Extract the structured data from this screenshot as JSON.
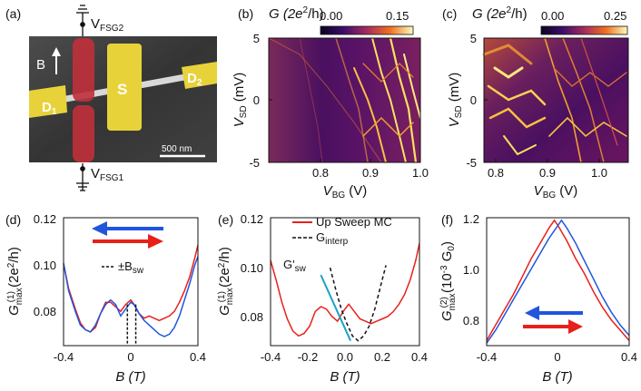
{
  "panels": {
    "a": {
      "label": "(a)",
      "gate_top": "V",
      "gate_top_sub": "FSG2",
      "gate_bottom": "V",
      "gate_bottom_sub": "FSG1",
      "b_label": "B",
      "d1_label": "D",
      "d1_sub": "1",
      "s_label": "S",
      "d2_label": "D",
      "d2_sub": "2",
      "scale_label": "500 nm"
    },
    "b": {
      "label": "(b)",
      "cbar_label_main": "G (2e",
      "cbar_label_sup": "2",
      "cbar_label_end": "/h)",
      "cbar_ticks": [
        "0.00",
        "0.15"
      ],
      "yticks": [
        "5",
        "0",
        "-5"
      ],
      "xticks": [
        "0.8",
        "0.9",
        "1.0"
      ],
      "ylabel_main": "V",
      "ylabel_sub": "SD",
      "ylabel_unit": " (mV)",
      "xlabel_main": "V",
      "xlabel_sub": "BG",
      "xlabel_unit": " (V)"
    },
    "c": {
      "label": "(c)",
      "cbar_label_main": "G (2e",
      "cbar_label_sup": "2",
      "cbar_label_end": "/h)",
      "cbar_ticks": [
        "0.00",
        "0.25"
      ],
      "yticks": [
        "5",
        "0",
        "-5"
      ],
      "xticks": [
        "0.8",
        "0.9",
        "1.0"
      ],
      "ylabel_main": "V",
      "ylabel_sub": "SD",
      "ylabel_unit": " (mV)",
      "xlabel_main": "V",
      "xlabel_sub": "BG",
      "xlabel_unit": " (V)"
    },
    "d": {
      "label": "(d)",
      "legend_dashed": "±B",
      "legend_dashed_sub": "sw",
      "yticks": [
        "0.12",
        "0.10",
        "0.08"
      ],
      "xticks": [
        "-0.4",
        "0",
        "0.4"
      ],
      "ylabel": "G",
      "ylabel_sub": "max",
      "ylabel_sup": "(1)",
      "ylabel_unit": " (2e",
      "ylabel_unit_sup": "2",
      "ylabel_unit_end": "/h)",
      "xlabel": "B (T)"
    },
    "e": {
      "label": "(e)",
      "legend_red": "Up Sweep MC",
      "legend_dashed": "G",
      "legend_dashed_sub": "interp",
      "annot": "G'",
      "annot_sub": "sw",
      "yticks": [
        "0.12",
        "0.10",
        "0.08"
      ],
      "xticks": [
        "-0.4",
        "-0.2",
        "0.0",
        "0.2",
        "0.4"
      ],
      "ylabel": "G",
      "ylabel_sub": "max",
      "ylabel_sup": "(1)",
      "ylabel_unit": " (2e",
      "ylabel_unit_sup": "2",
      "ylabel_unit_end": "/h)",
      "xlabel": "B (T)"
    },
    "f": {
      "label": "(f)",
      "yticks": [
        "1.2",
        "1.0",
        "0.8"
      ],
      "xticks": [
        "-0.4",
        "0",
        "0.4"
      ],
      "ylabel": "G",
      "ylabel_sub": "max",
      "ylabel_sup": "(2)",
      "ylabel_unit": " (10",
      "ylabel_unit_sup": "-3",
      "ylabel_unit_end": " G",
      "ylabel_unit_sub": "0",
      "ylabel_close": ")",
      "xlabel": "B (T)"
    }
  },
  "colors": {
    "red": "#e8201a",
    "blue": "#2255dd",
    "cyan": "#18a3c6",
    "dashed": "#111111",
    "yellow_device": "#e8d23a",
    "red_gate": "#c0303a"
  },
  "chart_data": [
    {
      "panel": "b",
      "type": "heatmap",
      "xlabel": "VBG (V)",
      "ylabel": "VSD (mV)",
      "xlim": [
        0.75,
        1.0
      ],
      "ylim": [
        -5,
        5
      ],
      "colorbar_range": [
        0.0,
        0.15
      ],
      "colormap": "inferno"
    },
    {
      "panel": "c",
      "type": "heatmap",
      "xlabel": "VBG (V)",
      "ylabel": "VSD (mV)",
      "xlim": [
        0.77,
        1.05
      ],
      "ylim": [
        -5,
        5
      ],
      "colorbar_range": [
        0.0,
        0.25
      ],
      "colormap": "inferno"
    },
    {
      "panel": "d",
      "type": "line",
      "xlabel": "B (T)",
      "ylabel": "G(1)max (2e2/h)",
      "xlim": [
        -0.4,
        0.4
      ],
      "ylim": [
        0.065,
        0.12
      ],
      "series": [
        {
          "name": "",
          "color": "red",
          "x": [
            -0.4,
            -0.37,
            -0.33,
            -0.3,
            -0.27,
            -0.24,
            -0.21,
            -0.18,
            -0.15,
            -0.12,
            -0.09,
            -0.06,
            -0.03,
            0.0,
            0.02,
            0.05,
            0.08,
            0.11,
            0.14,
            0.17,
            0.2,
            0.23,
            0.26,
            0.29,
            0.32,
            0.35,
            0.38,
            0.4
          ],
          "y": [
            0.101,
            0.09,
            0.081,
            0.075,
            0.072,
            0.071,
            0.073,
            0.079,
            0.084,
            0.084,
            0.082,
            0.08,
            0.083,
            0.085,
            0.083,
            0.079,
            0.077,
            0.078,
            0.077,
            0.076,
            0.077,
            0.078,
            0.08,
            0.084,
            0.089,
            0.095,
            0.103,
            0.109
          ]
        },
        {
          "name": "",
          "color": "blue",
          "x": [
            -0.4,
            -0.37,
            -0.33,
            -0.3,
            -0.27,
            -0.24,
            -0.21,
            -0.18,
            -0.15,
            -0.12,
            -0.09,
            -0.06,
            -0.03,
            0.0,
            0.02,
            0.05,
            0.08,
            0.11,
            0.14,
            0.17,
            0.2,
            0.23,
            0.26,
            0.29,
            0.32,
            0.35,
            0.38,
            0.4
          ],
          "y": [
            0.101,
            0.089,
            0.08,
            0.074,
            0.072,
            0.071,
            0.074,
            0.079,
            0.083,
            0.085,
            0.083,
            0.078,
            0.081,
            0.084,
            0.083,
            0.079,
            0.076,
            0.074,
            0.072,
            0.07,
            0.069,
            0.07,
            0.073,
            0.078,
            0.085,
            0.092,
            0.1,
            0.104
          ]
        }
      ],
      "vlines": [
        -0.02,
        0.03
      ]
    },
    {
      "panel": "e",
      "type": "line",
      "xlabel": "B (T)",
      "ylabel": "G(1)max (2e2/h)",
      "xlim": [
        -0.4,
        0.4
      ],
      "ylim": [
        0.068,
        0.12
      ],
      "series": [
        {
          "name": "Up Sweep MC",
          "color": "red",
          "x": [
            -0.4,
            -0.37,
            -0.34,
            -0.31,
            -0.28,
            -0.25,
            -0.22,
            -0.19,
            -0.16,
            -0.13,
            -0.1,
            -0.07,
            -0.04,
            -0.01,
            0.02,
            0.05,
            0.08,
            0.11,
            0.14,
            0.17,
            0.2,
            0.23,
            0.26,
            0.29,
            0.32,
            0.35,
            0.38,
            0.4
          ],
          "y": [
            0.103,
            0.095,
            0.086,
            0.079,
            0.074,
            0.072,
            0.073,
            0.076,
            0.082,
            0.084,
            0.083,
            0.08,
            0.078,
            0.082,
            0.085,
            0.082,
            0.079,
            0.078,
            0.077,
            0.078,
            0.079,
            0.08,
            0.082,
            0.085,
            0.089,
            0.095,
            0.103,
            0.11
          ]
        },
        {
          "name": "Ginterp",
          "color": "dashed",
          "x": [
            -0.08,
            -0.05,
            -0.02,
            0.01,
            0.04,
            0.07,
            0.1,
            0.13,
            0.16,
            0.19,
            0.22
          ],
          "y": [
            0.1,
            0.091,
            0.083,
            0.077,
            0.072,
            0.07,
            0.072,
            0.076,
            0.083,
            0.092,
            0.101
          ]
        },
        {
          "name": "G'sw",
          "color": "cyan",
          "x": [
            -0.13,
            0.03
          ],
          "y": [
            0.097,
            0.07
          ]
        }
      ]
    },
    {
      "panel": "f",
      "type": "line",
      "xlabel": "B (T)",
      "ylabel": "G(2)max (10-3 G0)",
      "xlim": [
        -0.4,
        0.4
      ],
      "ylim": [
        0.7,
        1.2
      ],
      "series": [
        {
          "name": "",
          "color": "red",
          "x": [
            -0.4,
            -0.35,
            -0.3,
            -0.25,
            -0.2,
            -0.15,
            -0.1,
            -0.05,
            -0.02,
            0.0,
            0.05,
            0.1,
            0.15,
            0.2,
            0.25,
            0.3,
            0.35,
            0.4
          ],
          "y": [
            0.72,
            0.78,
            0.84,
            0.9,
            0.97,
            1.04,
            1.1,
            1.16,
            1.19,
            1.17,
            1.11,
            1.04,
            0.98,
            0.91,
            0.85,
            0.8,
            0.76,
            0.72
          ]
        },
        {
          "name": "",
          "color": "blue",
          "x": [
            -0.4,
            -0.35,
            -0.3,
            -0.25,
            -0.2,
            -0.15,
            -0.1,
            -0.05,
            0.0,
            0.02,
            0.05,
            0.1,
            0.15,
            0.2,
            0.25,
            0.3,
            0.35,
            0.4
          ],
          "y": [
            0.71,
            0.76,
            0.82,
            0.88,
            0.94,
            1.0,
            1.06,
            1.12,
            1.17,
            1.19,
            1.16,
            1.1,
            1.03,
            0.96,
            0.89,
            0.83,
            0.78,
            0.74
          ]
        }
      ]
    }
  ]
}
